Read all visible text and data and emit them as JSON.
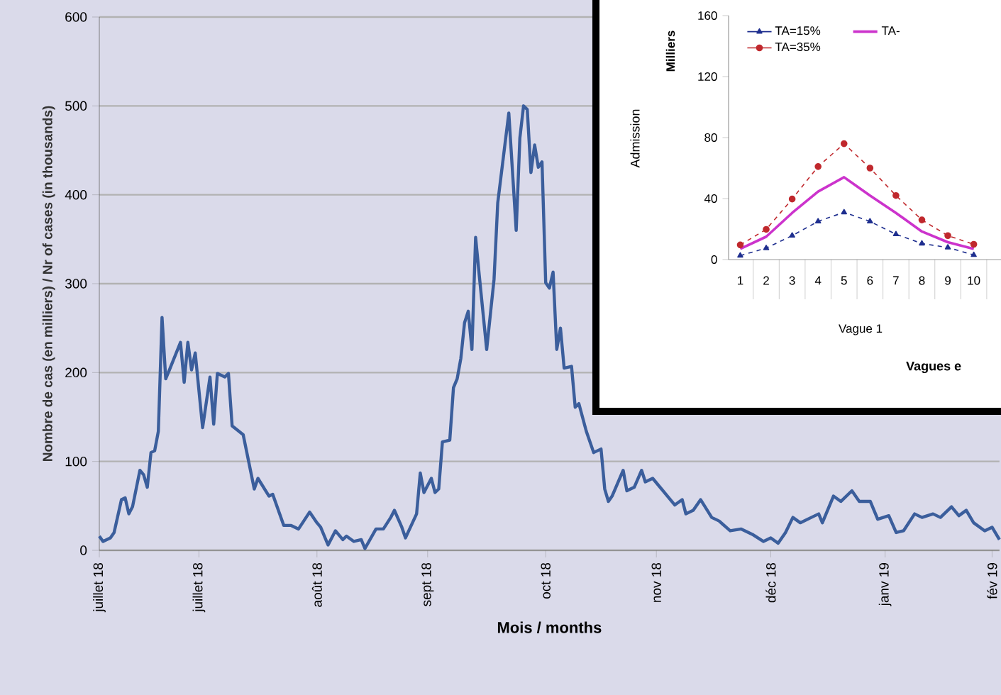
{
  "chart_data": [
    {
      "type": "line",
      "xlabel": "Mois / months",
      "ylabel": "Nombre de cas (en milliers) / Nr of cases (in thousands)",
      "color": "#3b5e9c",
      "grid": "y",
      "xlim": [
        "2018-07-01",
        "2019-03-02"
      ],
      "ylim": [
        0,
        600
      ],
      "yticks": [
        0,
        100,
        200,
        300,
        400,
        500,
        600
      ],
      "xticks": [
        {
          "value": "2018-07-01",
          "label": "juillet 18"
        },
        {
          "value": "2018-07-28",
          "label": "juillet 18"
        },
        {
          "value": "2018-08-29",
          "label": "août 18"
        },
        {
          "value": "2018-09-28",
          "label": "sept 18"
        },
        {
          "value": "2018-10-30",
          "label": "oct 18"
        },
        {
          "value": "2018-11-29",
          "label": "nov 18"
        },
        {
          "value": "2018-12-30",
          "label": "déc 18"
        },
        {
          "value": "2019-01-30",
          "label": "janv 19"
        },
        {
          "value": "2019-02-28",
          "label": "fév 19"
        }
      ],
      "x": [
        "2018-07-01",
        "2018-07-02",
        "2018-07-04",
        "2018-07-05",
        "2018-07-07",
        "2018-07-08",
        "2018-07-09",
        "2018-07-10",
        "2018-07-12",
        "2018-07-13",
        "2018-07-14",
        "2018-07-15",
        "2018-07-16",
        "2018-07-17",
        "2018-07-18",
        "2018-07-19",
        "2018-07-20",
        "2018-07-23",
        "2018-07-24",
        "2018-07-25",
        "2018-07-26",
        "2018-07-27",
        "2018-07-29",
        "2018-07-31",
        "2018-08-01",
        "2018-08-02",
        "2018-08-04",
        "2018-08-05",
        "2018-08-06",
        "2018-08-09",
        "2018-08-12",
        "2018-08-13",
        "2018-08-16",
        "2018-08-17",
        "2018-08-20",
        "2018-08-22",
        "2018-08-24",
        "2018-08-27",
        "2018-08-29",
        "2018-08-30",
        "2018-09-01",
        "2018-09-03",
        "2018-09-05",
        "2018-09-06",
        "2018-09-08",
        "2018-09-10",
        "2018-09-11",
        "2018-09-14",
        "2018-09-16",
        "2018-09-18",
        "2018-09-19",
        "2018-09-21",
        "2018-09-22",
        "2018-09-25",
        "2018-09-26",
        "2018-09-27",
        "2018-09-29",
        "2018-09-30",
        "2018-10-01",
        "2018-10-02",
        "2018-10-04",
        "2018-10-05",
        "2018-10-06",
        "2018-10-07",
        "2018-10-08",
        "2018-10-09",
        "2018-10-10",
        "2018-10-11",
        "2018-10-12",
        "2018-10-14",
        "2018-10-16",
        "2018-10-17",
        "2018-10-20",
        "2018-10-22",
        "2018-10-23",
        "2018-10-24",
        "2018-10-25",
        "2018-10-26",
        "2018-10-27",
        "2018-10-28",
        "2018-10-29",
        "2018-10-30",
        "2018-10-31",
        "2018-11-01",
        "2018-11-02",
        "2018-11-03",
        "2018-11-04",
        "2018-11-06",
        "2018-11-07",
        "2018-11-08",
        "2018-11-10",
        "2018-11-12",
        "2018-11-14",
        "2018-11-15",
        "2018-11-16",
        "2018-11-17",
        "2018-11-20",
        "2018-11-21",
        "2018-11-23",
        "2018-11-25",
        "2018-11-26",
        "2018-11-28",
        "2018-12-04",
        "2018-12-06",
        "2018-12-07",
        "2018-12-09",
        "2018-12-11",
        "2018-12-14",
        "2018-12-16",
        "2018-12-19",
        "2018-12-22",
        "2018-12-25",
        "2018-12-28",
        "2018-12-30",
        "2019-01-01",
        "2019-01-03",
        "2019-01-05",
        "2019-01-07",
        "2019-01-10",
        "2019-01-12",
        "2019-01-13",
        "2019-01-16",
        "2019-01-18",
        "2019-01-21",
        "2019-01-23",
        "2019-01-26",
        "2019-01-28",
        "2019-01-31",
        "2019-02-02",
        "2019-02-04",
        "2019-02-07",
        "2019-02-09",
        "2019-02-12",
        "2019-02-14",
        "2019-02-17",
        "2019-02-19",
        "2019-02-21",
        "2019-02-23",
        "2019-02-26",
        "2019-02-28",
        "2019-03-02"
      ],
      "values": [
        16,
        10,
        14,
        20,
        57,
        59,
        41,
        49,
        90,
        85,
        71,
        110,
        112,
        134,
        262,
        193,
        203,
        234,
        189,
        234,
        203,
        222,
        138,
        195,
        142,
        199,
        195,
        199,
        140,
        130,
        69,
        81,
        61,
        63,
        28,
        28,
        24,
        43,
        31,
        26,
        6,
        22,
        12,
        16,
        10,
        12,
        2,
        24,
        24,
        37,
        45,
        26,
        14,
        41,
        87,
        65,
        81,
        65,
        69,
        122,
        124,
        183,
        193,
        216,
        256,
        269,
        226,
        352,
        309,
        226,
        305,
        391,
        492,
        360,
        464,
        500,
        496,
        425,
        456,
        431,
        437,
        301,
        295,
        313,
        226,
        250,
        205,
        207,
        161,
        165,
        134,
        110,
        114,
        69,
        55,
        61,
        90,
        67,
        71,
        90,
        77,
        81,
        51,
        57,
        41,
        45,
        57,
        37,
        33,
        22,
        24,
        18,
        10,
        14,
        8,
        20,
        37,
        31,
        37,
        41,
        31,
        61,
        55,
        67,
        55,
        55,
        35,
        39,
        20,
        22,
        41,
        37,
        41,
        37,
        49,
        39,
        45,
        31,
        22,
        26,
        12
      ]
    },
    {
      "type": "line",
      "xlabel": "Vagues e",
      "ylabel": "Admission",
      "annotations": [
        "Milliers",
        "Vague 1"
      ],
      "legend": "top",
      "ylim": [
        0,
        160
      ],
      "yticks": [
        0,
        40,
        80,
        120,
        160
      ],
      "categories": [
        "1",
        "2",
        "3",
        "4",
        "5",
        "6",
        "7",
        "8",
        "9",
        "10"
      ],
      "series": [
        {
          "name": "TA=15%",
          "color": "#1f2f8f",
          "marker": "triangle",
          "line_style": "dashed",
          "values": [
            2.6,
            7.5,
            15.7,
            25,
            31,
            25,
            16.6,
            10.5,
            7.9,
            3
          ]
        },
        {
          "name": "TA-",
          "color": "#cc33cc",
          "marker": "none",
          "line_style": "solid",
          "values": [
            7,
            15,
            30.6,
            44.6,
            54,
            42,
            30.6,
            18.4,
            11.4,
            7
          ]
        },
        {
          "name": "TA=35%",
          "color": "#c0282d",
          "marker": "circle",
          "line_style": "dashed",
          "values": [
            9.6,
            19.8,
            39.7,
            61,
            76,
            60,
            42,
            26,
            15.7,
            10
          ]
        }
      ]
    }
  ]
}
